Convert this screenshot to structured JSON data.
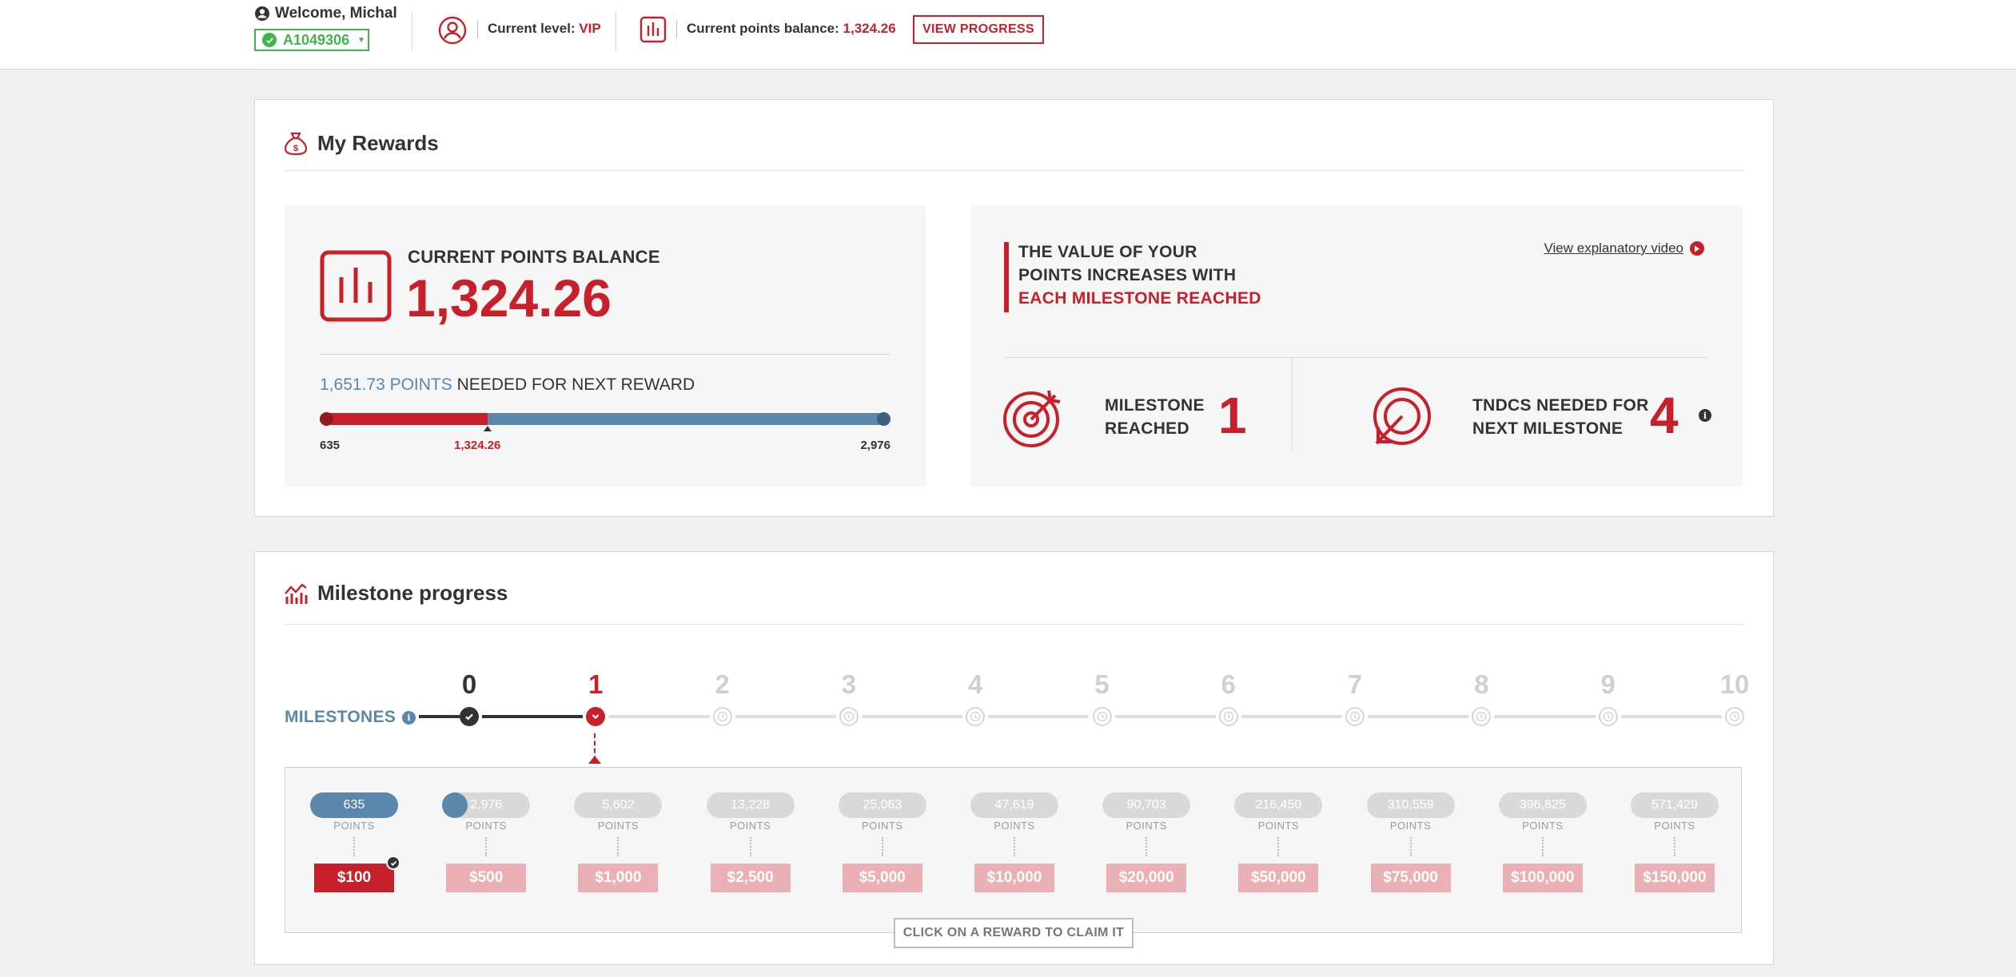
{
  "header": {
    "welcome": "Welcome, Michal",
    "account_id": "A1049306",
    "level_label": "Current level:",
    "level_value": "VIP",
    "balance_label": "Current points balance:",
    "balance_value": "1,324.26",
    "view_progress": "VIEW PROGRESS"
  },
  "rewards": {
    "title": "My Rewards",
    "balance_label": "CURRENT POINTS BALANCE",
    "balance_value": "1,324.26",
    "needed_points": "1,651.73 POINTS",
    "needed_text": "NEEDED FOR NEXT REWARD",
    "progress": {
      "min": 635,
      "current": 1324.26,
      "max": 2976,
      "min_label": "635",
      "current_label": "1,324.26",
      "max_label": "2,976"
    },
    "value_line1": "THE VALUE OF YOUR",
    "value_line2": "POINTS INCREASES WITH",
    "value_line3": "EACH MILESTONE REACHED",
    "video_link": "View explanatory video",
    "milestone_label1": "MILESTONE",
    "milestone_label2": "REACHED",
    "milestone_value": "1",
    "tndcs_label1": "TNDCS NEEDED FOR",
    "tndcs_label2": "NEXT MILESTONE",
    "tndcs_value": "4"
  },
  "milestones": {
    "title": "Milestone progress",
    "label": "MILESTONES",
    "numbers": [
      "0",
      "1",
      "2",
      "3",
      "4",
      "5",
      "6",
      "7",
      "8",
      "9",
      "10"
    ],
    "states": [
      "done",
      "current",
      "pending",
      "pending",
      "pending",
      "pending",
      "pending",
      "pending",
      "pending",
      "pending",
      "pending"
    ],
    "points_unit": "POINTS",
    "tiers": [
      {
        "points": "635",
        "reward": "$100",
        "state": "claimed"
      },
      {
        "points": "2,976",
        "reward": "$500",
        "state": "in-progress"
      },
      {
        "points": "5,602",
        "reward": "$1,000",
        "state": "locked"
      },
      {
        "points": "13,228",
        "reward": "$2,500",
        "state": "locked"
      },
      {
        "points": "25,063",
        "reward": "$5,000",
        "state": "locked"
      },
      {
        "points": "47,619",
        "reward": "$10,000",
        "state": "locked"
      },
      {
        "points": "90,703",
        "reward": "$20,000",
        "state": "locked"
      },
      {
        "points": "216,450",
        "reward": "$50,000",
        "state": "locked"
      },
      {
        "points": "310,559",
        "reward": "$75,000",
        "state": "locked"
      },
      {
        "points": "396,825",
        "reward": "$100,000",
        "state": "locked"
      },
      {
        "points": "571,429",
        "reward": "$150,000",
        "state": "locked"
      }
    ],
    "claim_hint": "CLICK ON A REWARD TO CLAIM IT"
  },
  "colors": {
    "accent": "#c8202b",
    "blue": "#5b87ad",
    "green": "#3fb54a"
  }
}
